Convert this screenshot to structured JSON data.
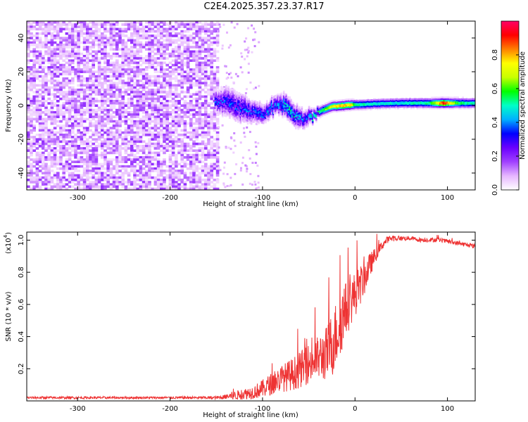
{
  "figure": {
    "title": "C2E4.2025.357.23.37.R17"
  },
  "chart_data": [
    {
      "type": "heatmap",
      "title": "C2E4.2025.357.23.37.R17",
      "xlabel": "Height of straight line (km)",
      "ylabel": "Frequency (Hz)",
      "xlim": [
        -355,
        130
      ],
      "ylim": [
        -50,
        50
      ],
      "xticks": [
        -300,
        -200,
        -100,
        0,
        100
      ],
      "yticks": [
        -40,
        -20,
        0,
        20,
        40
      ],
      "xtick_labels": [
        "-300",
        "-200",
        "-100",
        "0",
        "100"
      ],
      "ytick_labels": [
        "-40",
        "-20",
        "0",
        "20",
        "40"
      ],
      "colorbar": {
        "label": "Normalized spectral amplitude",
        "range": [
          0,
          1
        ],
        "ticks": [
          0.0,
          0.2,
          0.4,
          0.6,
          0.8
        ],
        "tick_labels": [
          "0.0",
          "0.2",
          "0.4",
          "0.6",
          "0.8"
        ],
        "colormap": [
          "#ffffff",
          "#e6b6ff",
          "#a040ff",
          "#6a00ff",
          "#0000ff",
          "#00b0ff",
          "#00ffc8",
          "#00ff00",
          "#c8ff00",
          "#ffff00",
          "#ff8000",
          "#ff0000",
          "#ff0066"
        ]
      },
      "noise_region": {
        "x_range": [
          -355,
          -150
        ],
        "freq_range": [
          -50,
          50
        ],
        "level": 0.12
      },
      "ridge": [
        {
          "x": -150,
          "freq": 3,
          "width": 6,
          "amplitude": 0.3
        },
        {
          "x": -140,
          "freq": 3,
          "width": 8,
          "amplitude": 0.3
        },
        {
          "x": -125,
          "freq": -1,
          "width": 8,
          "amplitude": 0.3
        },
        {
          "x": -110,
          "freq": -3,
          "width": 6,
          "amplitude": 0.3
        },
        {
          "x": -95,
          "freq": -4,
          "width": 5,
          "amplitude": 0.35
        },
        {
          "x": -85,
          "freq": 2,
          "width": 5,
          "amplitude": 0.35
        },
        {
          "x": -75,
          "freq": 0,
          "width": 6,
          "amplitude": 0.45
        },
        {
          "x": -65,
          "freq": -6,
          "width": 6,
          "amplitude": 0.4
        },
        {
          "x": -55,
          "freq": -8,
          "width": 5,
          "amplitude": 0.3
        },
        {
          "x": -45,
          "freq": -5,
          "width": 3,
          "amplitude": 0.45
        },
        {
          "x": -35,
          "freq": -2,
          "width": 2.5,
          "amplitude": 0.6
        },
        {
          "x": -25,
          "freq": 0,
          "width": 2.5,
          "amplitude": 0.75
        },
        {
          "x": -15,
          "freq": 0.5,
          "width": 2.5,
          "amplitude": 0.85
        },
        {
          "x": -5,
          "freq": 1,
          "width": 2.5,
          "amplitude": 0.8
        },
        {
          "x": 0,
          "freq": 1,
          "width": 2.5,
          "amplitude": 0.55
        },
        {
          "x": 20,
          "freq": 1.5,
          "width": 2.5,
          "amplitude": 0.5
        },
        {
          "x": 50,
          "freq": 2,
          "width": 2.5,
          "amplitude": 0.5
        },
        {
          "x": 80,
          "freq": 2,
          "width": 2.5,
          "amplitude": 0.55
        },
        {
          "x": 95,
          "freq": 2,
          "width": 2.5,
          "amplitude": 0.95
        },
        {
          "x": 110,
          "freq": 2,
          "width": 2.5,
          "amplitude": 0.6
        },
        {
          "x": 130,
          "freq": 2,
          "width": 2.5,
          "amplitude": 0.5
        }
      ]
    },
    {
      "type": "line",
      "xlabel": "Height of straight line (km)",
      "ylabel": "SNR (10 * v/v)",
      "y_multiplier": "(x10",
      "y_multiplier_exp": "4",
      "xlim": [
        -355,
        130
      ],
      "ylim": [
        0,
        1.05
      ],
      "xticks": [
        -300,
        -200,
        -100,
        0,
        100
      ],
      "yticks": [
        0.2,
        0.4,
        0.6,
        0.8,
        1.0
      ],
      "xtick_labels": [
        "-300",
        "-200",
        "-100",
        "0",
        "100"
      ],
      "ytick_labels": [
        "0.2",
        "0.4",
        "0.6",
        "0.8",
        "1.0"
      ],
      "color": "#ee3333",
      "series": [
        {
          "name": "SNR",
          "x": [
            -355,
            -300,
            -250,
            -200,
            -150,
            -130,
            -110,
            -100,
            -90,
            -80,
            -70,
            -60,
            -50,
            -40,
            -30,
            -25,
            -20,
            -15,
            -10,
            -5,
            0,
            5,
            10,
            15,
            20,
            25,
            30,
            35,
            40,
            50,
            60,
            70,
            80,
            90,
            100,
            110,
            120,
            130
          ],
          "y": [
            0.02,
            0.02,
            0.02,
            0.02,
            0.02,
            0.03,
            0.05,
            0.07,
            0.1,
            0.13,
            0.15,
            0.18,
            0.22,
            0.25,
            0.28,
            0.33,
            0.4,
            0.48,
            0.55,
            0.6,
            0.65,
            0.7,
            0.75,
            0.82,
            0.88,
            0.93,
            0.97,
            1.0,
            1.01,
            1.01,
            1.01,
            1.0,
            1.0,
            1.0,
            0.99,
            0.98,
            0.97,
            0.96
          ],
          "noise": [
            0.015,
            0.015,
            0.015,
            0.015,
            0.02,
            0.04,
            0.06,
            0.08,
            0.1,
            0.12,
            0.14,
            0.16,
            0.18,
            0.2,
            0.25,
            0.3,
            0.3,
            0.3,
            0.25,
            0.22,
            0.2,
            0.18,
            0.15,
            0.12,
            0.08,
            0.05,
            0.04,
            0.03,
            0.03,
            0.02,
            0.02,
            0.02,
            0.02,
            0.02,
            0.02,
            0.02,
            0.02,
            0.02
          ]
        }
      ]
    }
  ]
}
